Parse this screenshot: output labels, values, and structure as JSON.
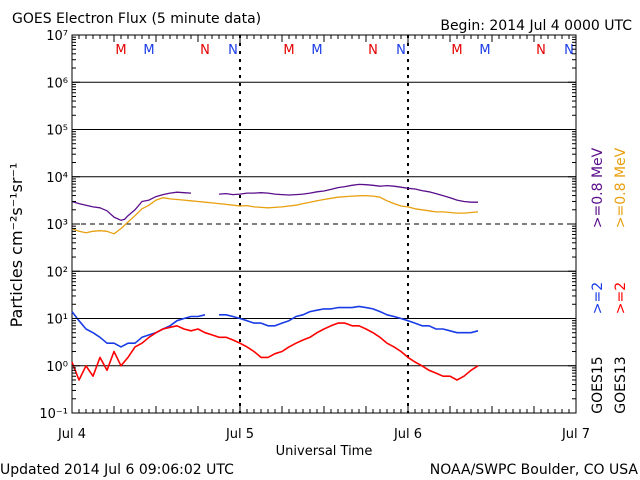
{
  "header": {
    "title": "GOES Electron Flux (5 minute data)",
    "begin": "Begin: 2014 Jul 4 0000 UTC"
  },
  "footer": {
    "updated": "Updated 2014 Jul  6 09:06:02 UTC",
    "credit": "NOAA/SWPC Boulder, CO USA"
  },
  "colors": {
    "goes15_08": "#5a0f8c",
    "goes13_08": "#e8a010",
    "goes15_2": "#1a3ce6",
    "goes13_2": "#ff0000",
    "marker_M_N_goes13": "#e60000",
    "marker_M_N_goes15": "#1a3ce6",
    "axis": "#000000"
  },
  "right_labels": {
    "goes15": "GOES15",
    "goes13": "GOES13",
    "s15_2": ">=2",
    "s13_2": ">=2",
    "s15_08": ">=0.8  MeV",
    "s13_08": ">=0.8  MeV"
  },
  "chart_data": {
    "type": "line",
    "xlabel": "Universal Time",
    "ylabel": "Particles cm⁻²s⁻¹sr⁻¹",
    "yscale": "log",
    "ylim": [
      0.1,
      10000000
    ],
    "xlim_hours": [
      0,
      72
    ],
    "x_ticks": [
      "Jul 4",
      "Jul 5",
      "Jul 6",
      "Jul 7"
    ],
    "y_ticks": [
      "10⁻¹",
      "10⁰",
      "10¹",
      "10²",
      "10³",
      "10⁴",
      "10⁵",
      "10⁶",
      "10⁷"
    ],
    "threshold": 1000,
    "markers": [
      {
        "label": "M",
        "hour": 7,
        "sat": "goes13"
      },
      {
        "label": "M",
        "hour": 11,
        "sat": "goes15"
      },
      {
        "label": "N",
        "hour": 19,
        "sat": "goes13"
      },
      {
        "label": "N",
        "hour": 23,
        "sat": "goes15"
      },
      {
        "label": "M",
        "hour": 31,
        "sat": "goes13"
      },
      {
        "label": "M",
        "hour": 35,
        "sat": "goes15"
      },
      {
        "label": "N",
        "hour": 43,
        "sat": "goes13"
      },
      {
        "label": "N",
        "hour": 47,
        "sat": "goes15"
      },
      {
        "label": "M",
        "hour": 55,
        "sat": "goes13"
      },
      {
        "label": "M",
        "hour": 59,
        "sat": "goes15"
      },
      {
        "label": "N",
        "hour": 67,
        "sat": "goes13"
      },
      {
        "label": "N",
        "hour": 71,
        "sat": "goes15"
      }
    ],
    "series": [
      {
        "name": "GOES15 >=0.8 MeV",
        "color": "#5a0f8c",
        "x": [
          0,
          1,
          2,
          3,
          4,
          5,
          6,
          7,
          7.5,
          8,
          9,
          10,
          11,
          12,
          13,
          14,
          15,
          16,
          17,
          18,
          19,
          null,
          21,
          22,
          23,
          24,
          25,
          26,
          27,
          28,
          29,
          30,
          31,
          32,
          33,
          34,
          35,
          36,
          37,
          38,
          39,
          40,
          41,
          42,
          43,
          44,
          45,
          46,
          47,
          48,
          49,
          50,
          51,
          52,
          53,
          54,
          55,
          56,
          57,
          58
        ],
        "y": [
          3000,
          2700,
          2500,
          2300,
          2200,
          1900,
          1400,
          1200,
          1250,
          1500,
          2000,
          3000,
          3200,
          3800,
          4200,
          4500,
          4700,
          4600,
          4500,
          null,
          null,
          null,
          4300,
          4400,
          4200,
          4300,
          4500,
          4500,
          4600,
          4500,
          4300,
          4200,
          4100,
          4200,
          4300,
          4500,
          4800,
          5000,
          5400,
          5900,
          6200,
          6600,
          6900,
          6800,
          6600,
          6300,
          6500,
          6300,
          6000,
          5700,
          5500,
          5100,
          4800,
          4400,
          4000,
          3600,
          3200,
          3000,
          2900,
          2900
        ]
      },
      {
        "name": "GOES13 >=0.8 MeV",
        "color": "#e8a010",
        "x": [
          0,
          1,
          2,
          3,
          4,
          5,
          6,
          7,
          8,
          9,
          10,
          11,
          12,
          13,
          14,
          15,
          16,
          17,
          18,
          19,
          20,
          21,
          22,
          23,
          24,
          25,
          26,
          27,
          28,
          29,
          30,
          31,
          32,
          33,
          34,
          35,
          36,
          37,
          38,
          39,
          40,
          41,
          42,
          43,
          44,
          45,
          46,
          47,
          48,
          49,
          50,
          51,
          52,
          53,
          54,
          55,
          56,
          57,
          58
        ],
        "y": [
          800,
          700,
          650,
          700,
          720,
          700,
          620,
          800,
          1100,
          1500,
          2100,
          2500,
          3200,
          3600,
          3400,
          3300,
          3200,
          3100,
          3000,
          2900,
          2800,
          2700,
          2600,
          2500,
          2400,
          2450,
          2300,
          2250,
          2200,
          2250,
          2300,
          2400,
          2500,
          2700,
          2900,
          3100,
          3300,
          3500,
          3700,
          3800,
          3900,
          3950,
          4000,
          3900,
          3700,
          3100,
          2700,
          2400,
          2300,
          2100,
          2000,
          1900,
          1800,
          1800,
          1750,
          1700,
          1700,
          1750,
          1800
        ]
      },
      {
        "name": "GOES15 >=2 MeV",
        "color": "#1a3ce6",
        "x": [
          0,
          1,
          2,
          3,
          4,
          5,
          6,
          7,
          8,
          9,
          10,
          11,
          12,
          13,
          14,
          15,
          16,
          17,
          18,
          19,
          null,
          21,
          22,
          23,
          24,
          25,
          26,
          27,
          28,
          29,
          30,
          31,
          32,
          33,
          34,
          35,
          36,
          37,
          38,
          39,
          40,
          41,
          42,
          43,
          44,
          45,
          46,
          47,
          48,
          49,
          50,
          51,
          52,
          53,
          54,
          55,
          56,
          57,
          58
        ],
        "y": [
          14,
          9,
          6,
          5,
          4,
          3,
          3,
          2.5,
          3,
          3,
          4,
          4.5,
          5,
          6,
          7,
          9,
          10,
          11,
          11,
          12,
          null,
          12,
          12,
          11,
          10,
          9,
          8,
          8,
          7,
          7,
          8,
          9,
          11,
          12,
          14,
          15,
          16,
          16,
          17,
          17,
          17,
          18,
          17,
          16,
          14,
          12,
          11,
          10,
          9,
          8,
          7,
          7,
          6,
          6,
          5.5,
          5,
          5,
          5,
          5.5
        ]
      },
      {
        "name": "GOES13 >=2 MeV",
        "color": "#ff0000",
        "x": [
          0,
          1,
          2,
          3,
          4,
          5,
          6,
          7,
          8,
          9,
          10,
          11,
          12,
          13,
          14,
          15,
          16,
          17,
          18,
          19,
          20,
          21,
          22,
          23,
          24,
          25,
          26,
          27,
          28,
          29,
          30,
          31,
          32,
          33,
          34,
          35,
          36,
          37,
          38,
          39,
          40,
          41,
          42,
          43,
          44,
          45,
          46,
          47,
          48,
          49,
          50,
          51,
          52,
          53,
          54,
          55,
          56,
          57,
          58
        ],
        "y": [
          1.2,
          0.5,
          1.0,
          0.6,
          1.5,
          0.8,
          2.0,
          1.0,
          1.5,
          2.5,
          3.0,
          4.0,
          5.0,
          6.0,
          6.5,
          7.0,
          6.0,
          5.5,
          6.0,
          5.0,
          4.5,
          4.0,
          4.0,
          3.5,
          3.0,
          2.5,
          2.0,
          1.5,
          1.5,
          1.8,
          2.0,
          2.5,
          3.0,
          3.5,
          4.0,
          5.0,
          6.0,
          7.0,
          8.0,
          8.0,
          7.0,
          7.0,
          6.0,
          5.0,
          4.0,
          3.0,
          2.5,
          2.0,
          1.5,
          1.2,
          1.0,
          0.8,
          0.7,
          0.6,
          0.6,
          0.5,
          0.6,
          0.8,
          1.0
        ]
      }
    ]
  }
}
